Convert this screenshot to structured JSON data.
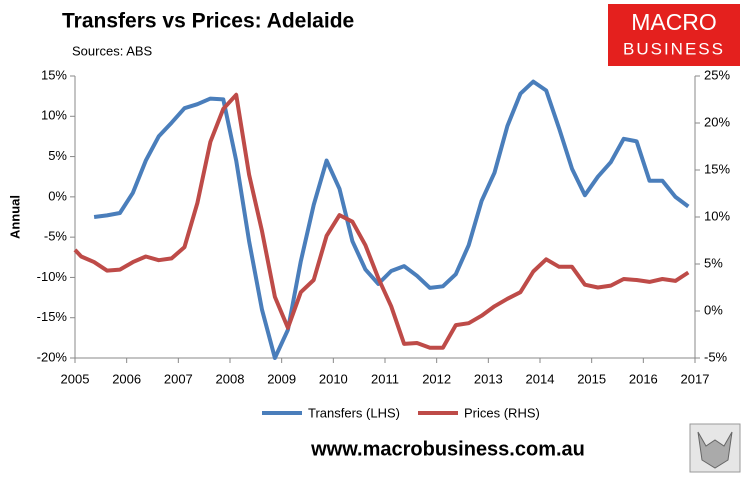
{
  "chart_data": {
    "type": "line",
    "title": "Transfers vs Prices: Adelaide",
    "subtitle": "Sources: ABS",
    "ylabel": "Annual",
    "x": [
      2005.0,
      2005.12,
      2005.37,
      2005.62,
      2005.87,
      2006.12,
      2006.37,
      2006.62,
      2006.87,
      2007.12,
      2007.37,
      2007.62,
      2007.87,
      2008.12,
      2008.37,
      2008.62,
      2008.87,
      2009.12,
      2009.37,
      2009.62,
      2009.87,
      2010.12,
      2010.37,
      2010.62,
      2010.87,
      2011.12,
      2011.37,
      2011.62,
      2011.87,
      2012.12,
      2012.37,
      2012.62,
      2012.87,
      2013.12,
      2013.37,
      2013.62,
      2013.87,
      2014.12,
      2014.37,
      2014.62,
      2014.87,
      2015.12,
      2015.37,
      2015.62,
      2015.87,
      2016.12,
      2016.37,
      2016.62,
      2016.87
    ],
    "series": [
      {
        "name": "Transfers (LHS)",
        "color": "#4a7ebb",
        "axis": "y",
        "values": [
          null,
          null,
          -2.5,
          -2.3,
          -2.0,
          0.5,
          4.5,
          7.5,
          9.2,
          11.0,
          11.5,
          12.2,
          12.1,
          4.5,
          -5.5,
          -14,
          -20,
          -16.5,
          -8,
          -1,
          4.5,
          1.0,
          -5.5,
          -9,
          -10.8,
          -9.2,
          -8.6,
          -9.8,
          -11.3,
          -11.1,
          -9.6,
          -6,
          -0.5,
          3,
          8.8,
          12.8,
          14.3,
          13.2,
          8.5,
          3.5,
          0.2,
          2.5,
          4.3,
          7.2,
          6.9,
          2.0,
          2.0,
          0,
          -1.2
        ]
      },
      {
        "name": "Prices (RHS)",
        "color": "#be4b48",
        "axis": "y2",
        "values": [
          6.5,
          5.8,
          5.2,
          4.3,
          4.4,
          5.2,
          5.8,
          5.4,
          5.6,
          6.8,
          11.5,
          18,
          21.5,
          23,
          14.5,
          8.5,
          1.5,
          -1.8,
          2,
          3.3,
          8,
          10.2,
          9.5,
          7,
          3.5,
          0.5,
          -3.5,
          -3.4,
          -3.9,
          -3.9,
          -1.5,
          -1.3,
          -0.5,
          0.5,
          1.3,
          2,
          4.2,
          5.5,
          4.7,
          4.7,
          2.8,
          2.5,
          2.7,
          3.4,
          3.3,
          3.1,
          3.4,
          3.2,
          4.1
        ]
      }
    ],
    "xlim": [
      2005,
      2017
    ],
    "xticks": [
      2005,
      2006,
      2007,
      2008,
      2009,
      2010,
      2011,
      2012,
      2013,
      2014,
      2015,
      2016,
      2017
    ],
    "ylim": [
      -20,
      15
    ],
    "yticks": [
      {
        "value": -20,
        "label": "-20%"
      },
      {
        "value": -15,
        "label": "-15%"
      },
      {
        "value": -10,
        "label": "-10%"
      },
      {
        "value": -5,
        "label": "-5%"
      },
      {
        "value": 0,
        "label": "0%"
      },
      {
        "value": 5,
        "label": "5%"
      },
      {
        "value": 10,
        "label": "10%"
      },
      {
        "value": 15,
        "label": "15%"
      }
    ],
    "y2lim": [
      -5,
      25
    ],
    "y2ticks": [
      {
        "value": -5,
        "label": "-5%"
      },
      {
        "value": 0,
        "label": "0%"
      },
      {
        "value": 5,
        "label": "5%"
      },
      {
        "value": 10,
        "label": "10%"
      },
      {
        "value": 15,
        "label": "15%"
      },
      {
        "value": 20,
        "label": "20%"
      },
      {
        "value": 25,
        "label": "25%"
      }
    ],
    "grid": false,
    "legend": "bottom"
  },
  "branding": {
    "logo_top": "MACRO",
    "logo_bottom": "BUSINESS",
    "website": "www.macrobusiness.com.au"
  }
}
